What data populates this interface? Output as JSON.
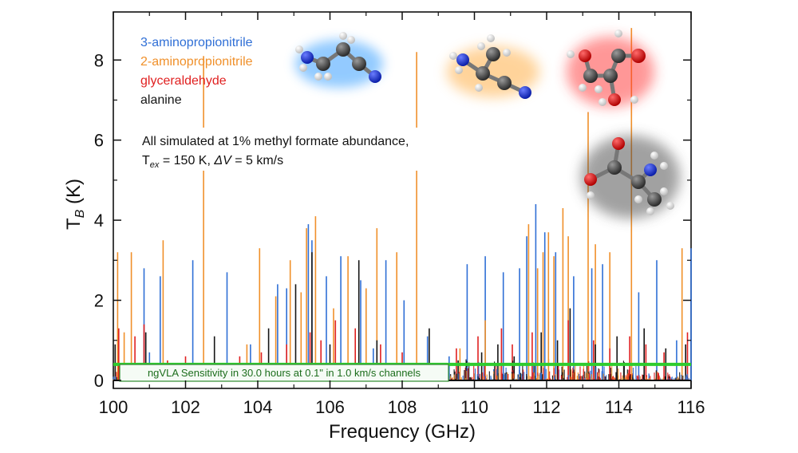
{
  "chart_data": {
    "type": "line",
    "subtype": "stick-spectrum",
    "title": "",
    "xlabel": "Frequency (GHz)",
    "ylabel": "T",
    "ylabel_sub": "B",
    "ylabel_unit": " (K)",
    "xlim": [
      100,
      116
    ],
    "ylim": [
      -0.2,
      9.2
    ],
    "xticks": [
      100,
      102,
      104,
      106,
      108,
      110,
      112,
      114,
      116
    ],
    "yticks": [
      0,
      2,
      4,
      6,
      8
    ],
    "legend_position": "top-left",
    "series": [
      {
        "name": "3-aminopropionitrile",
        "color": "#2f6fd6",
        "lines": [
          [
            100.85,
            2.8
          ],
          [
            101.3,
            2.6
          ],
          [
            102.2,
            3.0
          ],
          [
            103.15,
            2.7
          ],
          [
            104.55,
            2.4
          ],
          [
            104.8,
            2.3
          ],
          [
            105.4,
            3.9
          ],
          [
            105.5,
            3.5
          ],
          [
            105.9,
            2.6
          ],
          [
            106.3,
            3.1
          ],
          [
            106.85,
            2.5
          ],
          [
            107.55,
            3.0
          ],
          [
            108.05,
            2.0
          ],
          [
            108.7,
            1.1
          ],
          [
            109.8,
            2.9
          ],
          [
            110.3,
            3.1
          ],
          [
            110.8,
            2.7
          ],
          [
            111.25,
            2.8
          ],
          [
            111.45,
            3.6
          ],
          [
            111.7,
            4.4
          ],
          [
            111.95,
            3.7
          ],
          [
            112.25,
            3.2
          ],
          [
            112.75,
            2.6
          ],
          [
            113.25,
            2.8
          ],
          [
            113.55,
            2.9
          ],
          [
            114.55,
            2.2
          ],
          [
            115.05,
            3.0
          ],
          [
            116.0,
            3.3
          ],
          [
            115.6,
            1.0
          ],
          [
            101.0,
            0.7
          ],
          [
            103.8,
            0.9
          ],
          [
            107.2,
            0.8
          ],
          [
            109.3,
            0.6
          ]
        ]
      },
      {
        "name": "2-aminopropionitrile",
        "color": "#f0902a",
        "lines": [
          [
            100.12,
            3.2
          ],
          [
            100.5,
            3.2
          ],
          [
            101.38,
            3.5
          ],
          [
            102.5,
            8.1
          ],
          [
            104.05,
            3.3
          ],
          [
            104.5,
            2.1
          ],
          [
            104.9,
            3.0
          ],
          [
            105.2,
            2.2
          ],
          [
            105.35,
            3.8
          ],
          [
            105.6,
            4.1
          ],
          [
            106.1,
            1.8
          ],
          [
            106.5,
            3.1
          ],
          [
            107.0,
            2.3
          ],
          [
            107.3,
            3.8
          ],
          [
            107.85,
            3.2
          ],
          [
            108.4,
            8.2
          ],
          [
            110.3,
            1.5
          ],
          [
            111.5,
            3.9
          ],
          [
            111.75,
            2.8
          ],
          [
            111.9,
            3.2
          ],
          [
            112.05,
            3.7
          ],
          [
            112.2,
            3.1
          ],
          [
            112.45,
            4.3
          ],
          [
            112.6,
            3.6
          ],
          [
            113.15,
            6.7
          ],
          [
            113.35,
            3.4
          ],
          [
            113.75,
            3.2
          ],
          [
            114.35,
            8.8
          ],
          [
            115.75,
            3.3
          ],
          [
            100.3,
            1.2
          ],
          [
            103.7,
            0.9
          ],
          [
            109.6,
            0.8
          ]
        ]
      },
      {
        "name": "glyceraldehyde",
        "color": "#e02020",
        "lines": [
          [
            100.15,
            1.3
          ],
          [
            100.6,
            1.1
          ],
          [
            100.85,
            1.4
          ],
          [
            101.5,
            0.5
          ],
          [
            102.0,
            0.6
          ],
          [
            102.3,
            0.4
          ],
          [
            103.5,
            0.6
          ],
          [
            104.1,
            0.7
          ],
          [
            104.8,
            0.9
          ],
          [
            105.45,
            1.2
          ],
          [
            105.75,
            1.0
          ],
          [
            106.15,
            1.5
          ],
          [
            106.7,
            1.3
          ],
          [
            107.4,
            0.9
          ],
          [
            108.0,
            0.7
          ],
          [
            109.5,
            0.8
          ],
          [
            110.1,
            1.1
          ],
          [
            110.75,
            1.3
          ],
          [
            111.05,
            0.9
          ],
          [
            111.6,
            1.2
          ],
          [
            112.6,
            1.5
          ],
          [
            113.3,
            1.0
          ],
          [
            113.75,
            0.8
          ],
          [
            114.3,
            1.1
          ],
          [
            114.75,
            0.9
          ],
          [
            115.25,
            0.7
          ],
          [
            115.9,
            1.2
          ]
        ]
      },
      {
        "name": "alanine",
        "color": "#151515",
        "lines": [
          [
            100.05,
            0.9
          ],
          [
            100.9,
            1.2
          ],
          [
            102.8,
            1.1
          ],
          [
            104.3,
            1.3
          ],
          [
            105.05,
            2.4
          ],
          [
            105.5,
            3.2
          ],
          [
            106.0,
            0.9
          ],
          [
            106.8,
            3.0
          ],
          [
            107.3,
            1.0
          ],
          [
            108.75,
            1.3
          ],
          [
            109.55,
            0.5
          ],
          [
            110.2,
            0.7
          ],
          [
            110.65,
            0.9
          ],
          [
            111.1,
            0.6
          ],
          [
            111.85,
            1.2
          ],
          [
            112.3,
            1.0
          ],
          [
            112.65,
            1.8
          ],
          [
            113.35,
            0.9
          ],
          [
            113.95,
            1.1
          ],
          [
            114.7,
            1.3
          ],
          [
            115.3,
            0.8
          ],
          [
            115.85,
            0.9
          ]
        ]
      }
    ],
    "sensitivity": {
      "value": 0.4,
      "color": "#2ecc2e",
      "label": "ngVLA Sensitivity in 30.0 hours at 0.1\" in 1.0 km/s channels"
    }
  },
  "legend": [
    {
      "label": "3-aminopropionitrile",
      "color": "#2f6fd6"
    },
    {
      "label": "2-aminopropionitrile",
      "color": "#f0902a"
    },
    {
      "label": "glyceraldehyde",
      "color": "#e02020"
    },
    {
      "label": "alanine",
      "color": "#151515"
    }
  ],
  "annotation": {
    "line1": "All simulated at 1% methyl formate abundance,",
    "tex_symbol": "T",
    "tex_sub": "ex",
    "tex_value": " = 150 K, ",
    "dv_symbol": "ΔV",
    "dv_value": " = 5 km/s"
  },
  "molecules": [
    {
      "name": "3-aminopropionitrile",
      "glow": "#3aa0ff"
    },
    {
      "name": "2-aminopropionitrile",
      "glow": "#ffb04a"
    },
    {
      "name": "glyceraldehyde",
      "glow": "#ff3030"
    },
    {
      "name": "alanine",
      "glow": "#444444"
    }
  ]
}
